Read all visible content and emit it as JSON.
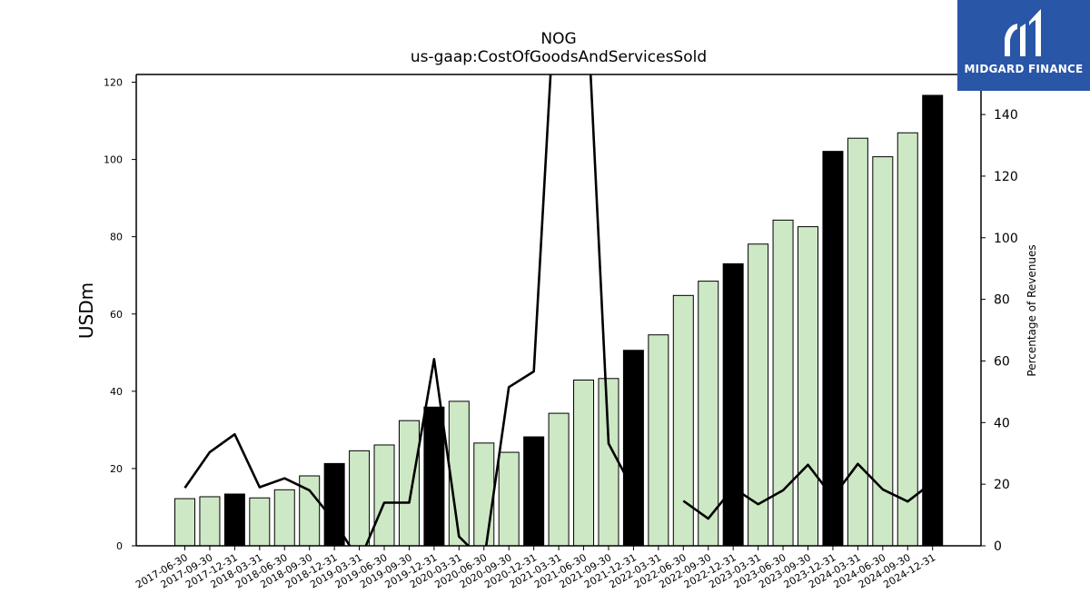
{
  "chart_data": {
    "type": "bar",
    "title": "NOG",
    "subtitle": "us-gaap:CostOfGoodsAndServicesSold",
    "ylabel": "USDm",
    "y2label": "Percentage of Revenues",
    "ylim": [
      0,
      122
    ],
    "y2lim": [
      0,
      153
    ],
    "yticks": [
      0,
      20,
      40,
      60,
      80,
      100,
      120
    ],
    "y2ticks": [
      0,
      20,
      40,
      60,
      80,
      100,
      120,
      140
    ],
    "categories": [
      "2017-06-30",
      "2017-09-30",
      "2017-12-31",
      "2018-03-31",
      "2018-06-30",
      "2018-09-30",
      "2018-12-31",
      "2019-03-31",
      "2019-06-30",
      "2019-09-30",
      "2019-12-31",
      "2020-03-31",
      "2020-06-30",
      "2020-09-30",
      "2020-12-31",
      "2021-03-31",
      "2021-06-30",
      "2021-09-30",
      "2021-12-31",
      "2022-03-31",
      "2022-06-30",
      "2022-09-30",
      "2022-12-31",
      "2023-03-31",
      "2023-06-30",
      "2023-09-30",
      "2023-12-31",
      "2024-03-31",
      "2024-06-30",
      "2024-09-30",
      "2024-12-31"
    ],
    "series": [
      {
        "type": "bar",
        "values": [
          12.2,
          12.7,
          13.4,
          12.4,
          14.5,
          18.1,
          21.3,
          24.6,
          26.1,
          32.4,
          35.9,
          37.4,
          26.6,
          24.2,
          28.2,
          34.3,
          42.9,
          43.3,
          50.6,
          54.6,
          64.8,
          68.5,
          73.0,
          78.1,
          84.3,
          82.6,
          102.1,
          105.5,
          100.7,
          106.9,
          116.6
        ],
        "annual_color": "#000000",
        "quarter_color": "#cde8c5"
      },
      {
        "type": "line",
        "axis": "right",
        "values": [
          18.8,
          30.4,
          36.2,
          19.0,
          21.9,
          18.0,
          8.0,
          -5.0,
          14.0,
          14.0,
          60.6,
          3.0,
          -5.0,
          51.5,
          56.6,
          200.0,
          200.0,
          33.2,
          18.0,
          null,
          14.6,
          8.8,
          18.8,
          13.5,
          18.0,
          26.3,
          15.8,
          26.6,
          18.3,
          14.4,
          20.6
        ],
        "color": "#000000"
      }
    ]
  },
  "logo": {
    "text": "MIDGARD FINANCE",
    "color": "#2a56a8"
  }
}
